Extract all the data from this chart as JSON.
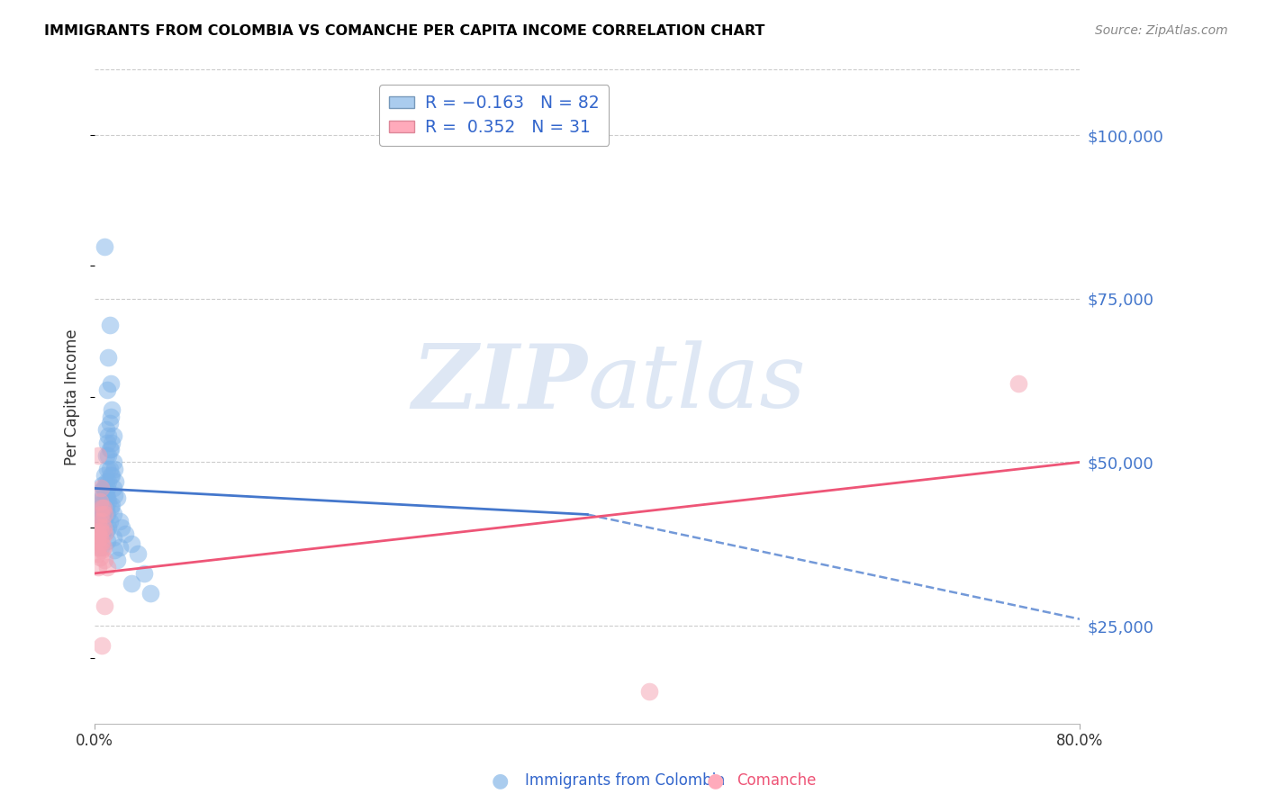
{
  "title": "IMMIGRANTS FROM COLOMBIA VS COMANCHE PER CAPITA INCOME CORRELATION CHART",
  "source": "Source: ZipAtlas.com",
  "ylabel": "Per Capita Income",
  "yticks": [
    25000,
    50000,
    75000,
    100000
  ],
  "ytick_labels": [
    "$25,000",
    "$50,000",
    "$75,000",
    "$100,000"
  ],
  "xlim": [
    0.0,
    0.8
  ],
  "ylim": [
    10000,
    110000
  ],
  "watermark_zip": "ZIP",
  "watermark_atlas": "atlas",
  "colombia_color": "#7EB3E8",
  "comanche_color": "#F5A0B0",
  "colombia_line_color": "#4477CC",
  "comanche_line_color": "#EE5577",
  "colombia_line_solid": [
    [
      0.0,
      46000
    ],
    [
      0.4,
      42000
    ]
  ],
  "colombia_line_dashed": [
    [
      0.4,
      42000
    ],
    [
      0.8,
      26000
    ]
  ],
  "comanche_line_solid": [
    [
      0.0,
      33000
    ],
    [
      0.8,
      50000
    ]
  ],
  "colombia_points": [
    [
      0.008,
      83000
    ],
    [
      0.012,
      71000
    ],
    [
      0.011,
      66000
    ],
    [
      0.013,
      62000
    ],
    [
      0.01,
      61000
    ],
    [
      0.014,
      58000
    ],
    [
      0.013,
      57000
    ],
    [
      0.012,
      56000
    ],
    [
      0.009,
      55000
    ],
    [
      0.015,
      54000
    ],
    [
      0.011,
      54000
    ],
    [
      0.01,
      53000
    ],
    [
      0.014,
      53000
    ],
    [
      0.012,
      52000
    ],
    [
      0.013,
      52000
    ],
    [
      0.009,
      51000
    ],
    [
      0.011,
      51000
    ],
    [
      0.015,
      50000
    ],
    [
      0.01,
      49000
    ],
    [
      0.012,
      49000
    ],
    [
      0.016,
      49000
    ],
    [
      0.008,
      48000
    ],
    [
      0.013,
      48000
    ],
    [
      0.014,
      48000
    ],
    [
      0.009,
      47000
    ],
    [
      0.011,
      47000
    ],
    [
      0.017,
      47000
    ],
    [
      0.006,
      46500
    ],
    [
      0.01,
      46000
    ],
    [
      0.015,
      46000
    ],
    [
      0.007,
      46000
    ],
    [
      0.008,
      46000
    ],
    [
      0.005,
      45500
    ],
    [
      0.009,
      45000
    ],
    [
      0.016,
      45000
    ],
    [
      0.006,
      44500
    ],
    [
      0.01,
      44500
    ],
    [
      0.018,
      44500
    ],
    [
      0.004,
      44000
    ],
    [
      0.007,
      44000
    ],
    [
      0.011,
      44000
    ],
    [
      0.003,
      43500
    ],
    [
      0.008,
      43500
    ],
    [
      0.014,
      43500
    ],
    [
      0.005,
      43000
    ],
    [
      0.009,
      43000
    ],
    [
      0.013,
      43000
    ],
    [
      0.002,
      42500
    ],
    [
      0.006,
      42000
    ],
    [
      0.015,
      42000
    ],
    [
      0.004,
      42000
    ],
    [
      0.01,
      42000
    ],
    [
      0.003,
      41500
    ],
    [
      0.007,
      41500
    ],
    [
      0.02,
      41000
    ],
    [
      0.005,
      41000
    ],
    [
      0.012,
      41000
    ],
    [
      0.002,
      40500
    ],
    [
      0.008,
      40500
    ],
    [
      0.022,
      40000
    ],
    [
      0.004,
      40000
    ],
    [
      0.011,
      40000
    ],
    [
      0.003,
      39500
    ],
    [
      0.009,
      39500
    ],
    [
      0.002,
      39000
    ],
    [
      0.006,
      39000
    ],
    [
      0.025,
      39000
    ],
    [
      0.004,
      38500
    ],
    [
      0.015,
      38500
    ],
    [
      0.003,
      38000
    ],
    [
      0.01,
      38000
    ],
    [
      0.03,
      37500
    ],
    [
      0.005,
      37000
    ],
    [
      0.02,
      37000
    ],
    [
      0.016,
      36500
    ],
    [
      0.035,
      36000
    ],
    [
      0.018,
      35000
    ],
    [
      0.04,
      33000
    ],
    [
      0.03,
      31500
    ],
    [
      0.045,
      30000
    ]
  ],
  "comanche_points": [
    [
      0.75,
      62000
    ],
    [
      0.003,
      51000
    ],
    [
      0.005,
      46000
    ],
    [
      0.004,
      44000
    ],
    [
      0.006,
      43000
    ],
    [
      0.007,
      43000
    ],
    [
      0.005,
      42000
    ],
    [
      0.008,
      42000
    ],
    [
      0.003,
      41000
    ],
    [
      0.006,
      41000
    ],
    [
      0.004,
      40000
    ],
    [
      0.007,
      40000
    ],
    [
      0.002,
      39500
    ],
    [
      0.005,
      39500
    ],
    [
      0.003,
      39000
    ],
    [
      0.008,
      39000
    ],
    [
      0.004,
      38500
    ],
    [
      0.006,
      38000
    ],
    [
      0.002,
      38000
    ],
    [
      0.005,
      37500
    ],
    [
      0.003,
      37000
    ],
    [
      0.007,
      37000
    ],
    [
      0.002,
      36000
    ],
    [
      0.006,
      36500
    ],
    [
      0.004,
      35500
    ],
    [
      0.003,
      34000
    ],
    [
      0.008,
      35000
    ],
    [
      0.01,
      34000
    ],
    [
      0.008,
      28000
    ],
    [
      0.006,
      22000
    ],
    [
      0.45,
      15000
    ]
  ]
}
